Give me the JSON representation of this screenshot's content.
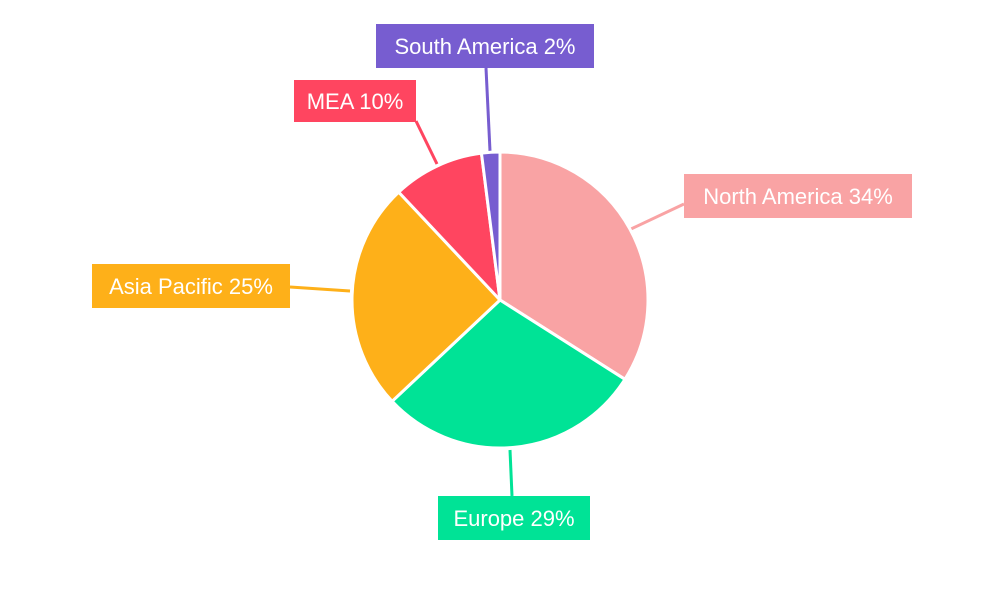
{
  "chart_data": {
    "type": "pie",
    "start_angle_deg": 0,
    "direction": "clockwise",
    "legend": "none",
    "slices": [
      {
        "name": "North America",
        "value": 34,
        "label": "North America 34%",
        "color": "#F9A3A4"
      },
      {
        "name": "Europe",
        "value": 29,
        "label": "Europe 29%",
        "color": "#00E396"
      },
      {
        "name": "Asia Pacific",
        "value": 25,
        "label": "Asia Pacific 25%",
        "color": "#FEB019"
      },
      {
        "name": "MEA",
        "value": 10,
        "label": "MEA 10%",
        "color": "#FF4560"
      },
      {
        "name": "South America",
        "value": 2,
        "label": "South America 2%",
        "color": "#775DD0"
      }
    ]
  }
}
